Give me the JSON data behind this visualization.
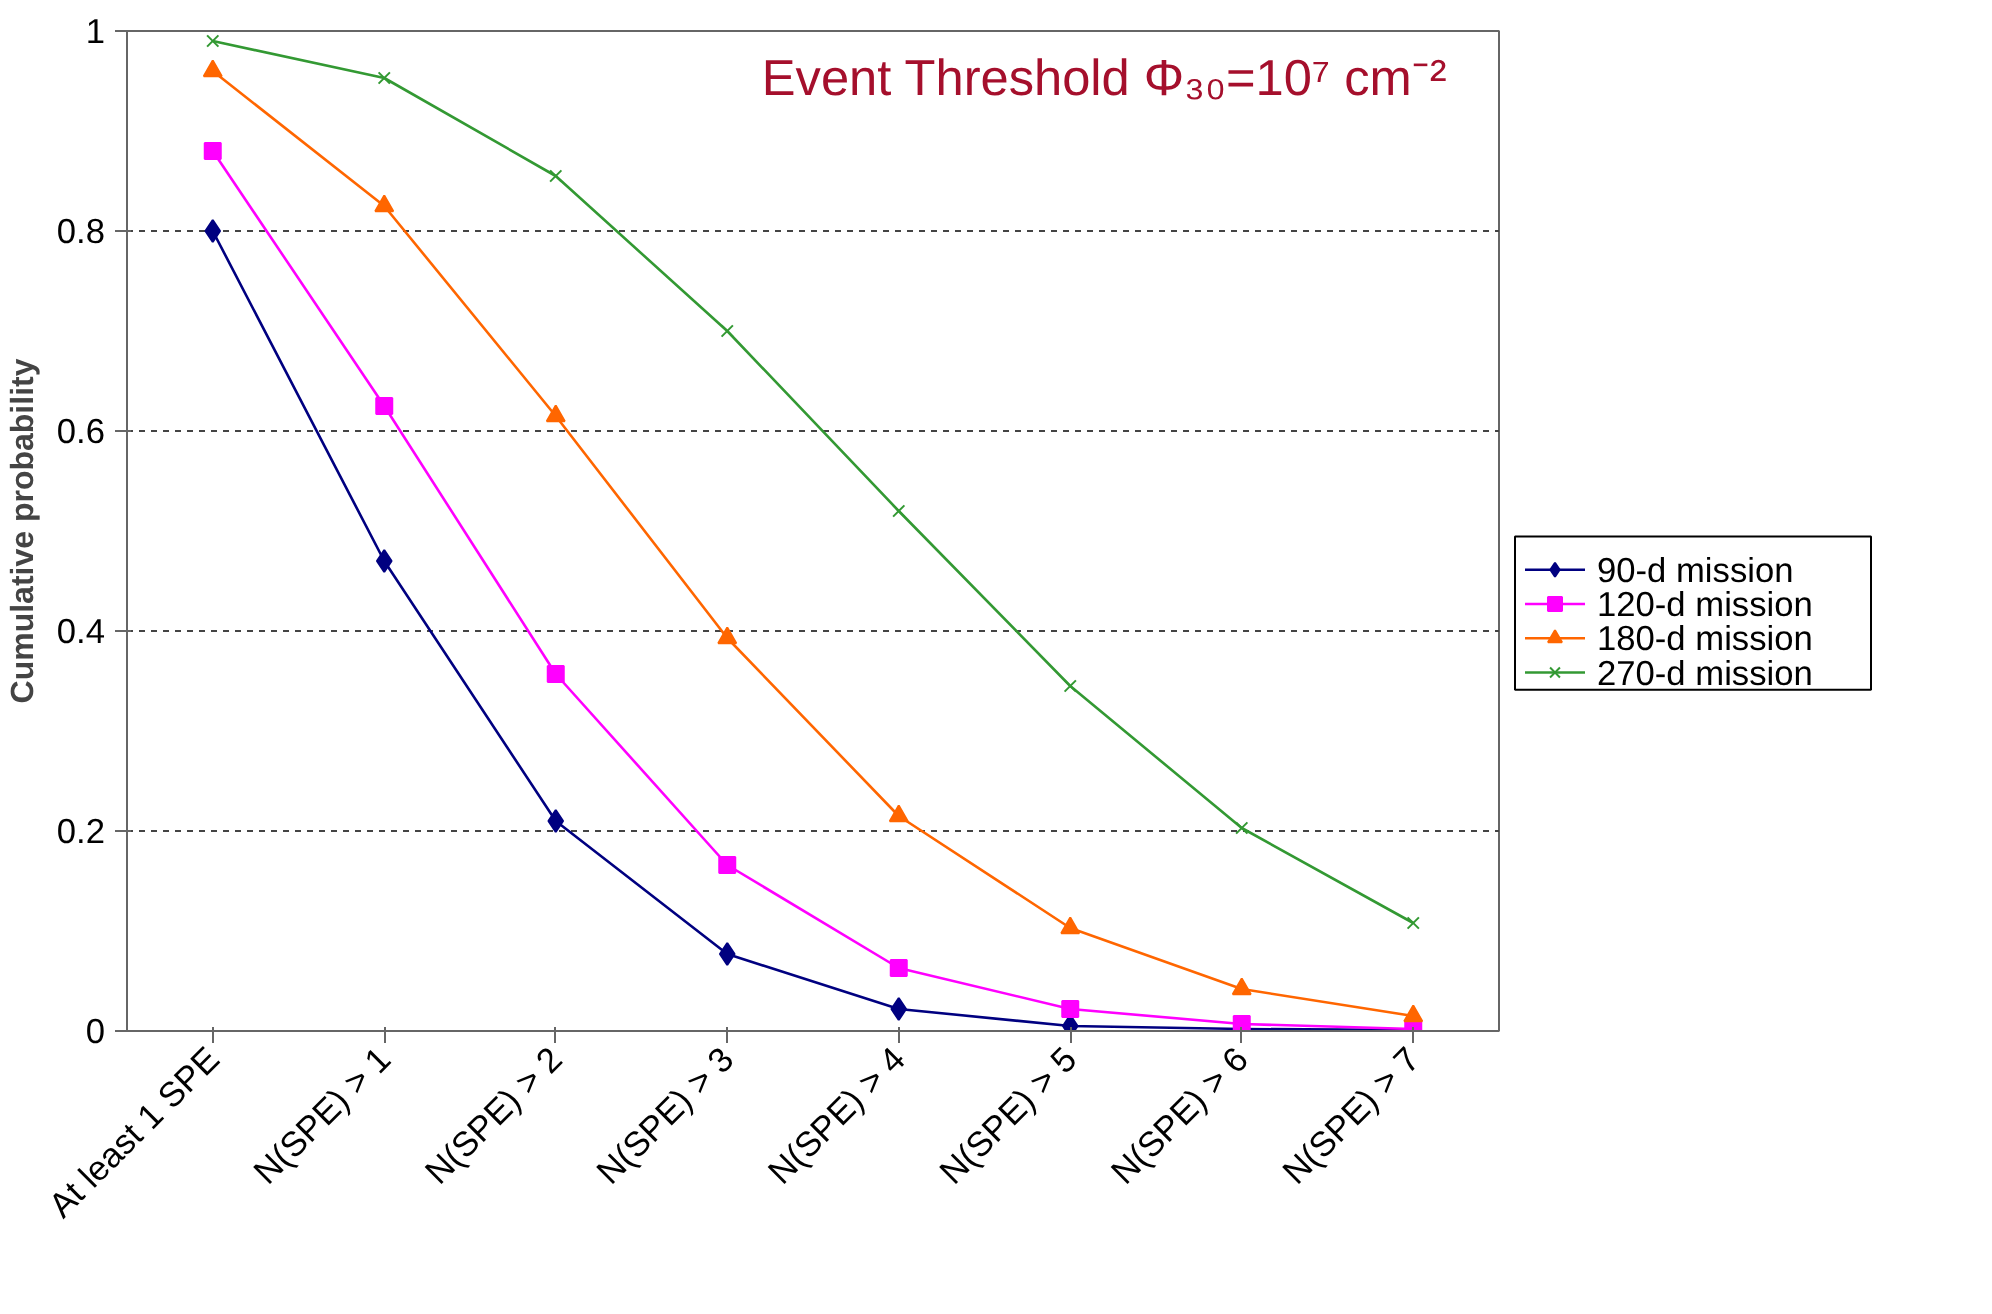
{
  "chart_data": {
    "type": "line",
    "title": "Event Threshold Φ₃₀=10⁷ cm⁻²",
    "ylabel": "Cumulative probability",
    "categories": [
      "At least 1 SPE",
      "N(SPE) > 1",
      "N(SPE) > 2",
      "N(SPE) > 3",
      "N(SPE) > 4",
      "N(SPE) > 5",
      "N(SPE) > 6",
      "N(SPE) > 7"
    ],
    "series": [
      {
        "name": "90-d mission",
        "color": "#000080",
        "marker": "diamond",
        "values": [
          0.8,
          0.47,
          0.21,
          0.077,
          0.022,
          0.005,
          0.002,
          0.001
        ]
      },
      {
        "name": "120-d mission",
        "color": "#ff00ff",
        "marker": "square",
        "values": [
          0.88,
          0.625,
          0.357,
          0.166,
          0.063,
          0.022,
          0.007,
          0.002
        ]
      },
      {
        "name": "180-d mission",
        "color": "#ff6600",
        "marker": "triangle",
        "values": [
          0.96,
          0.825,
          0.615,
          0.393,
          0.215,
          0.103,
          0.042,
          0.015
        ]
      },
      {
        "name": "270-d mission",
        "color": "#339933",
        "marker": "cross",
        "values": [
          0.99,
          0.953,
          0.855,
          0.7,
          0.52,
          0.345,
          0.203,
          0.108
        ]
      }
    ],
    "ylim": [
      0,
      1
    ],
    "yticks": [
      0,
      0.2,
      0.4,
      0.6,
      0.8,
      1
    ],
    "grid": "y",
    "legend": "right",
    "line_style": "solid"
  }
}
